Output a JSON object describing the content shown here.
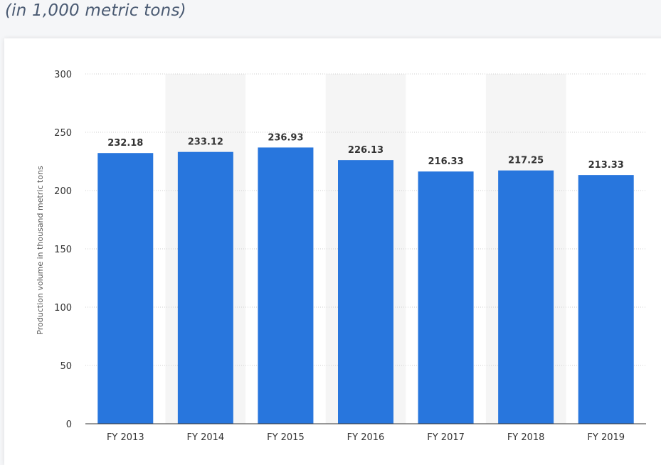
{
  "header": {
    "subtitle": "(in 1,000 metric tons)"
  },
  "chart_data": {
    "type": "bar",
    "categories": [
      "FY 2013",
      "FY 2014",
      "FY 2015",
      "FY 2016",
      "FY 2017",
      "FY 2018",
      "FY 2019"
    ],
    "values": [
      232.18,
      233.12,
      236.93,
      226.13,
      216.33,
      217.25,
      213.33
    ],
    "data_labels": [
      "232.18",
      "233.12",
      "236.93",
      "226.13",
      "216.33",
      "217.25",
      "213.33"
    ],
    "title": "",
    "xlabel": "",
    "ylabel": "Production volume in thousand metric tons",
    "ylim": [
      0,
      300
    ],
    "yticks": [
      "0",
      "50",
      "100",
      "150",
      "200",
      "250",
      "300"
    ],
    "grid": true,
    "colors": {
      "bar": "#2876dd",
      "band": "#f5f5f5",
      "grid": "#cfcfcf",
      "axis": "#333333"
    }
  }
}
